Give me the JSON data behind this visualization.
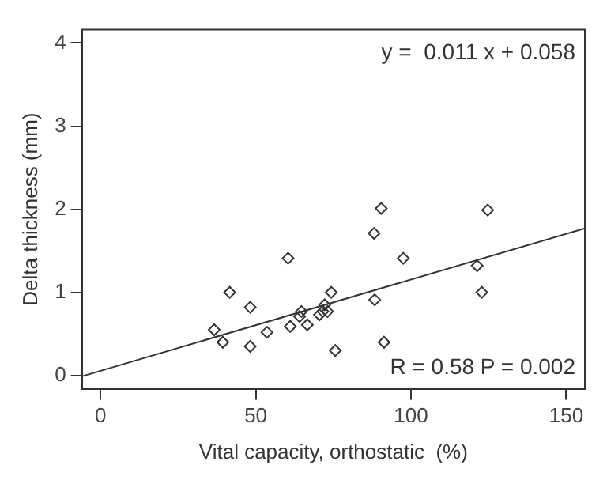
{
  "chart_data": {
    "type": "scatter",
    "xlabel": "Vital capacity, orthostatic  (%)",
    "ylabel": "Delta thickness (mm)",
    "xlim": [
      -6,
      156
    ],
    "ylim": [
      -0.16,
      4.16
    ],
    "xticks": [
      0,
      50,
      100,
      150
    ],
    "yticks": [
      0,
      1,
      2,
      3,
      4
    ],
    "grid": false,
    "legend": false,
    "marker": "diamond",
    "annotations": [
      "y =  0.011 x + 0.058",
      "R = 0.58 P = 0.002"
    ],
    "series": [
      {
        "type": "scatter",
        "color": "#333333",
        "x": [
          36.6,
          39.4,
          41.6,
          48.2,
          48.2,
          53.6,
          60.4,
          61.1,
          64.7,
          64.1,
          66.6,
          70.5,
          71.6,
          72.2,
          73.1,
          74.3,
          75.6,
          88.1,
          90.4,
          88.3,
          91.3,
          97.5,
          121.3,
          122.8,
          124.7
        ],
        "values": [
          0.55,
          0.4,
          1.0,
          0.82,
          0.35,
          0.52,
          1.41,
          0.59,
          0.77,
          0.71,
          0.61,
          0.73,
          0.77,
          0.85,
          0.77,
          1.0,
          0.3,
          1.71,
          2.01,
          0.91,
          0.4,
          1.41,
          1.32,
          1.0,
          1.99
        ]
      },
      {
        "type": "line",
        "color": "#333333",
        "marker": "none",
        "line_style": "solid",
        "x": [
          -6,
          156
        ],
        "values": [
          -0.01,
          1.77
        ]
      }
    ]
  }
}
